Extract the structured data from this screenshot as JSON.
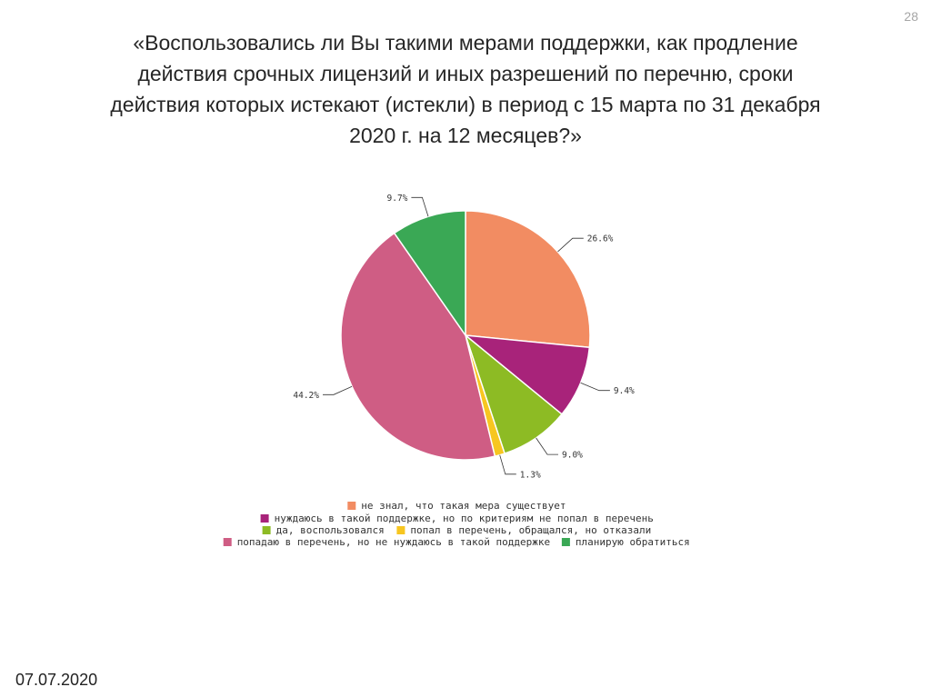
{
  "page": {
    "slide_number": "28",
    "date": "07.07.2020"
  },
  "chart_data": {
    "type": "pie",
    "title": "«Воспользовались ли Вы такими мерами поддержки, как продление действия срочных лицензий и иных разрешений по перечню, сроки действия которых истекают (истекли) в период с 15 марта по 31 декабря 2020 г. на 12 месяцев?»",
    "title_lines": [
      "«Воспользовались ли Вы такими мерами поддержки, как продление",
      "действия срочных лицензий и иных разрешений по перечню, сроки",
      "действия которых истекают (истекли) в период с 15 марта по 31 декабря",
      "2020 г. на 12 месяцев?»"
    ],
    "slices": [
      {
        "label": "не знал, что такая мера существует",
        "value": 26.6,
        "display": "26.6%",
        "color": "#f28c62"
      },
      {
        "label": "нуждаюсь в такой поддержке, но по критериям не попал в перечень",
        "value": 9.4,
        "display": "9.4%",
        "color": "#a8237a"
      },
      {
        "label": "да, воспользовался",
        "value": 9.0,
        "display": "9.0%",
        "color": "#8dbb24"
      },
      {
        "label": "попал в перечень, обращался, но отказали",
        "value": 1.3,
        "display": "1.3%",
        "color": "#f7c620"
      },
      {
        "label": "попадаю в перечень, но не нуждаюсь в такой поддержке",
        "value": 44.2,
        "display": "44.2%",
        "color": "#cf5d84"
      },
      {
        "label": "планирую обратиться",
        "value": 9.7,
        "display": "9.7%",
        "color": "#3aa855"
      }
    ],
    "legend_position": "bottom"
  }
}
